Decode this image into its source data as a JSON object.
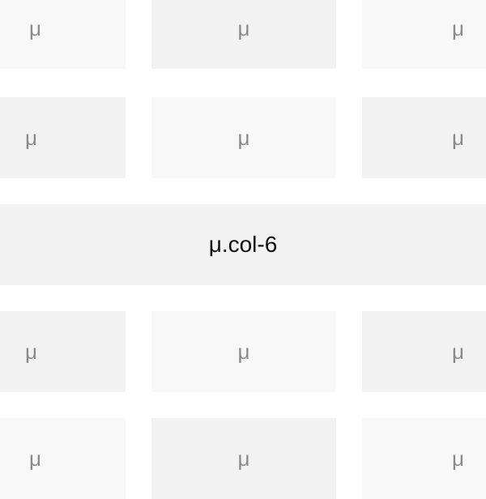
{
  "grid": {
    "rows": [
      {
        "cells": [
          {
            "label": "μ"
          },
          {
            "label": "μ"
          },
          {
            "label": "μ"
          }
        ]
      },
      {
        "cells": [
          {
            "label": "μ"
          },
          {
            "label": "μ"
          },
          {
            "label": "μ"
          }
        ]
      },
      {
        "full_label": "μ.col-6"
      },
      {
        "cells": [
          {
            "label": "μ"
          },
          {
            "label": "μ"
          },
          {
            "label": "μ"
          }
        ]
      },
      {
        "cells": [
          {
            "label": "μ"
          },
          {
            "label": "μ"
          },
          {
            "label": "μ"
          }
        ]
      }
    ]
  },
  "colors": {
    "cell_light": "#f8f8f8",
    "cell_dark": "#f2f2f2",
    "cell_text": "#8a8a8a",
    "full_row_text": "#111111",
    "background": "#ffffff"
  }
}
